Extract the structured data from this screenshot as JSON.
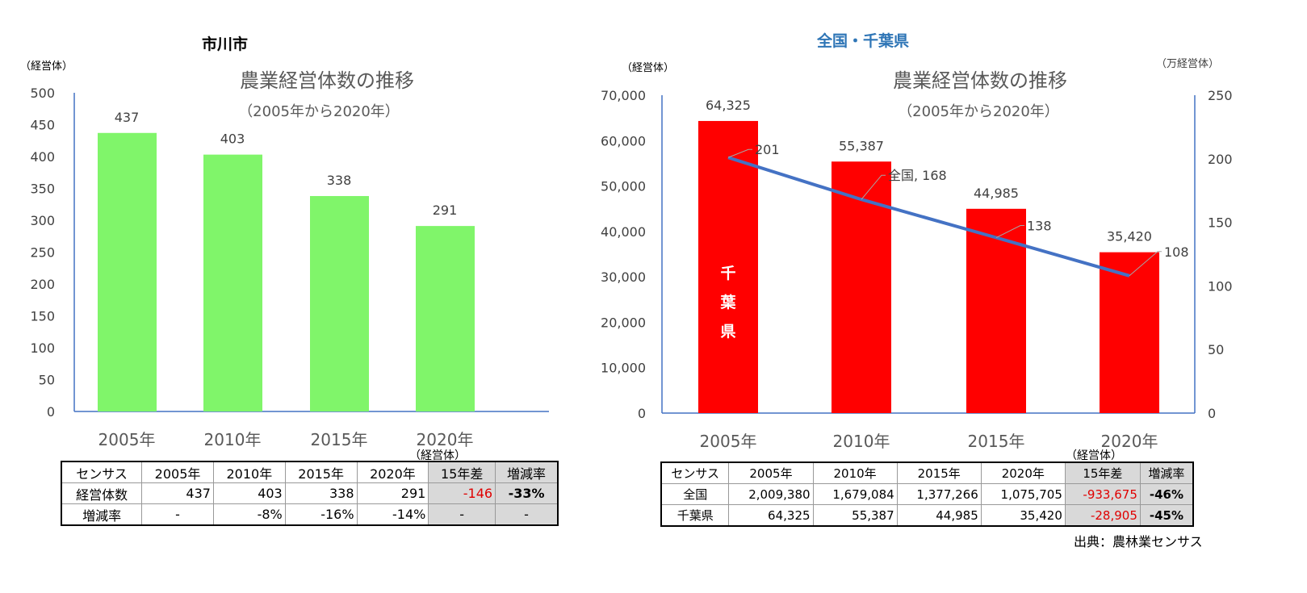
{
  "chart_data": [
    {
      "type": "bar",
      "panel_title": "市川市",
      "title": "農業経営体数の推移",
      "subtitle": "（2005年から2020年）",
      "ylabel": "（経営体）",
      "categories": [
        "2005年",
        "2010年",
        "2015年",
        "2020年"
      ],
      "values": [
        437,
        403,
        338,
        291
      ],
      "ylim": [
        0,
        500
      ],
      "yticks": [
        0,
        50,
        100,
        150,
        200,
        250,
        300,
        350,
        400,
        450,
        500
      ],
      "bar_color": "#80f56a",
      "grid": false
    },
    {
      "type": "bar+line",
      "panel_title": "全国・千葉県",
      "panel_title_color": "#2e75b6",
      "title": "農業経営体数の推移",
      "subtitle": "（2005年から2020年）",
      "ylabel": "（経営体）",
      "y2label": "（万経営体）",
      "categories": [
        "2005年",
        "2010年",
        "2015年",
        "2020年"
      ],
      "series": [
        {
          "name": "千葉県",
          "kind": "bar",
          "axis": "left",
          "values": [
            64325,
            55387,
            44985,
            35420
          ],
          "labels": [
            "64,325",
            "55,387",
            "44,985",
            "35,420"
          ],
          "color": "#ff0000"
        },
        {
          "name": "全国",
          "kind": "line",
          "axis": "right",
          "values": [
            201,
            168,
            138,
            108
          ],
          "labels": [
            "201",
            "全国, 168",
            "138",
            "108"
          ],
          "color": "#4472c4"
        }
      ],
      "ylim": [
        0,
        70000
      ],
      "y2lim": [
        0,
        250
      ],
      "yticks": [
        "0",
        "10,000",
        "20,000",
        "30,000",
        "40,000",
        "50,000",
        "60,000",
        "70,000"
      ],
      "y2ticks": [
        "0",
        "50",
        "100",
        "150",
        "200",
        "250"
      ],
      "grid": false
    }
  ],
  "table_left": {
    "unit": "（経営体）",
    "header": [
      "センサス",
      "2005年",
      "2010年",
      "2015年",
      "2020年",
      "15年差",
      "増減率"
    ],
    "rows": [
      [
        "経営体数",
        "437",
        "403",
        "338",
        "291",
        "-146",
        "-33%"
      ],
      [
        "増減率",
        "-",
        "-8%",
        "-16%",
        "-14%",
        "-",
        "-"
      ]
    ]
  },
  "table_right": {
    "unit": "（経営体）",
    "header": [
      "センサス",
      "2005年",
      "2010年",
      "2015年",
      "2020年",
      "15年差",
      "増減率"
    ],
    "rows": [
      [
        "全国",
        "2,009,380",
        "1,679,084",
        "1,377,266",
        "1,075,705",
        "-933,675",
        "-46%"
      ],
      [
        "千葉県",
        "64,325",
        "55,387",
        "44,985",
        "35,420",
        "-28,905",
        "-45%"
      ]
    ]
  },
  "source": "出典：農林業センサス"
}
